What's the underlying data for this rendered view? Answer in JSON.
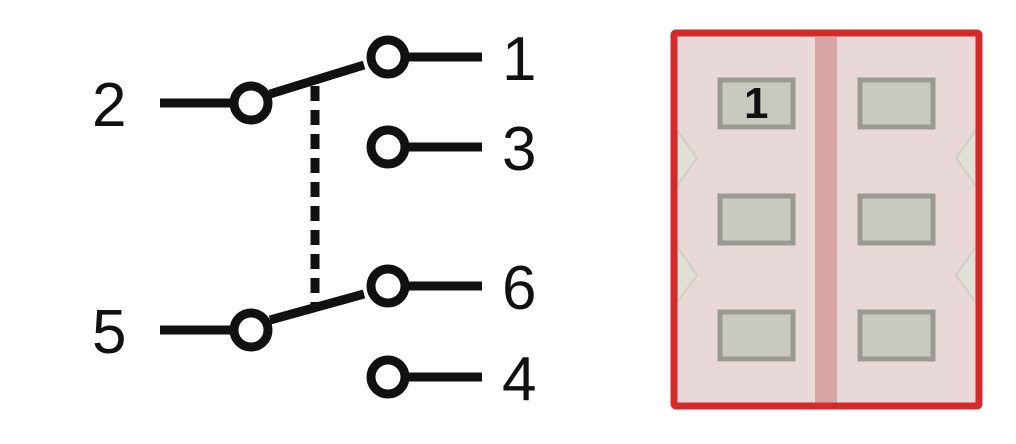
{
  "schematic": {
    "pin_labels": {
      "pin1": "1",
      "pin2": "2",
      "pin3": "3",
      "pin4": "4",
      "pin5": "5",
      "pin6": "6"
    },
    "colors": {
      "line": "#111111",
      "terminal_fill": "#ffffff"
    }
  },
  "footprint": {
    "pin1_marker": "1",
    "colors": {
      "outline": "#d42a2a",
      "body_fill": "#e8d8d8",
      "center_strip": "#d8a5a5",
      "pad_fill": "#c9c9c0",
      "pad_stroke": "#9a9a92",
      "notch_fill": "#e0e0d8"
    }
  }
}
